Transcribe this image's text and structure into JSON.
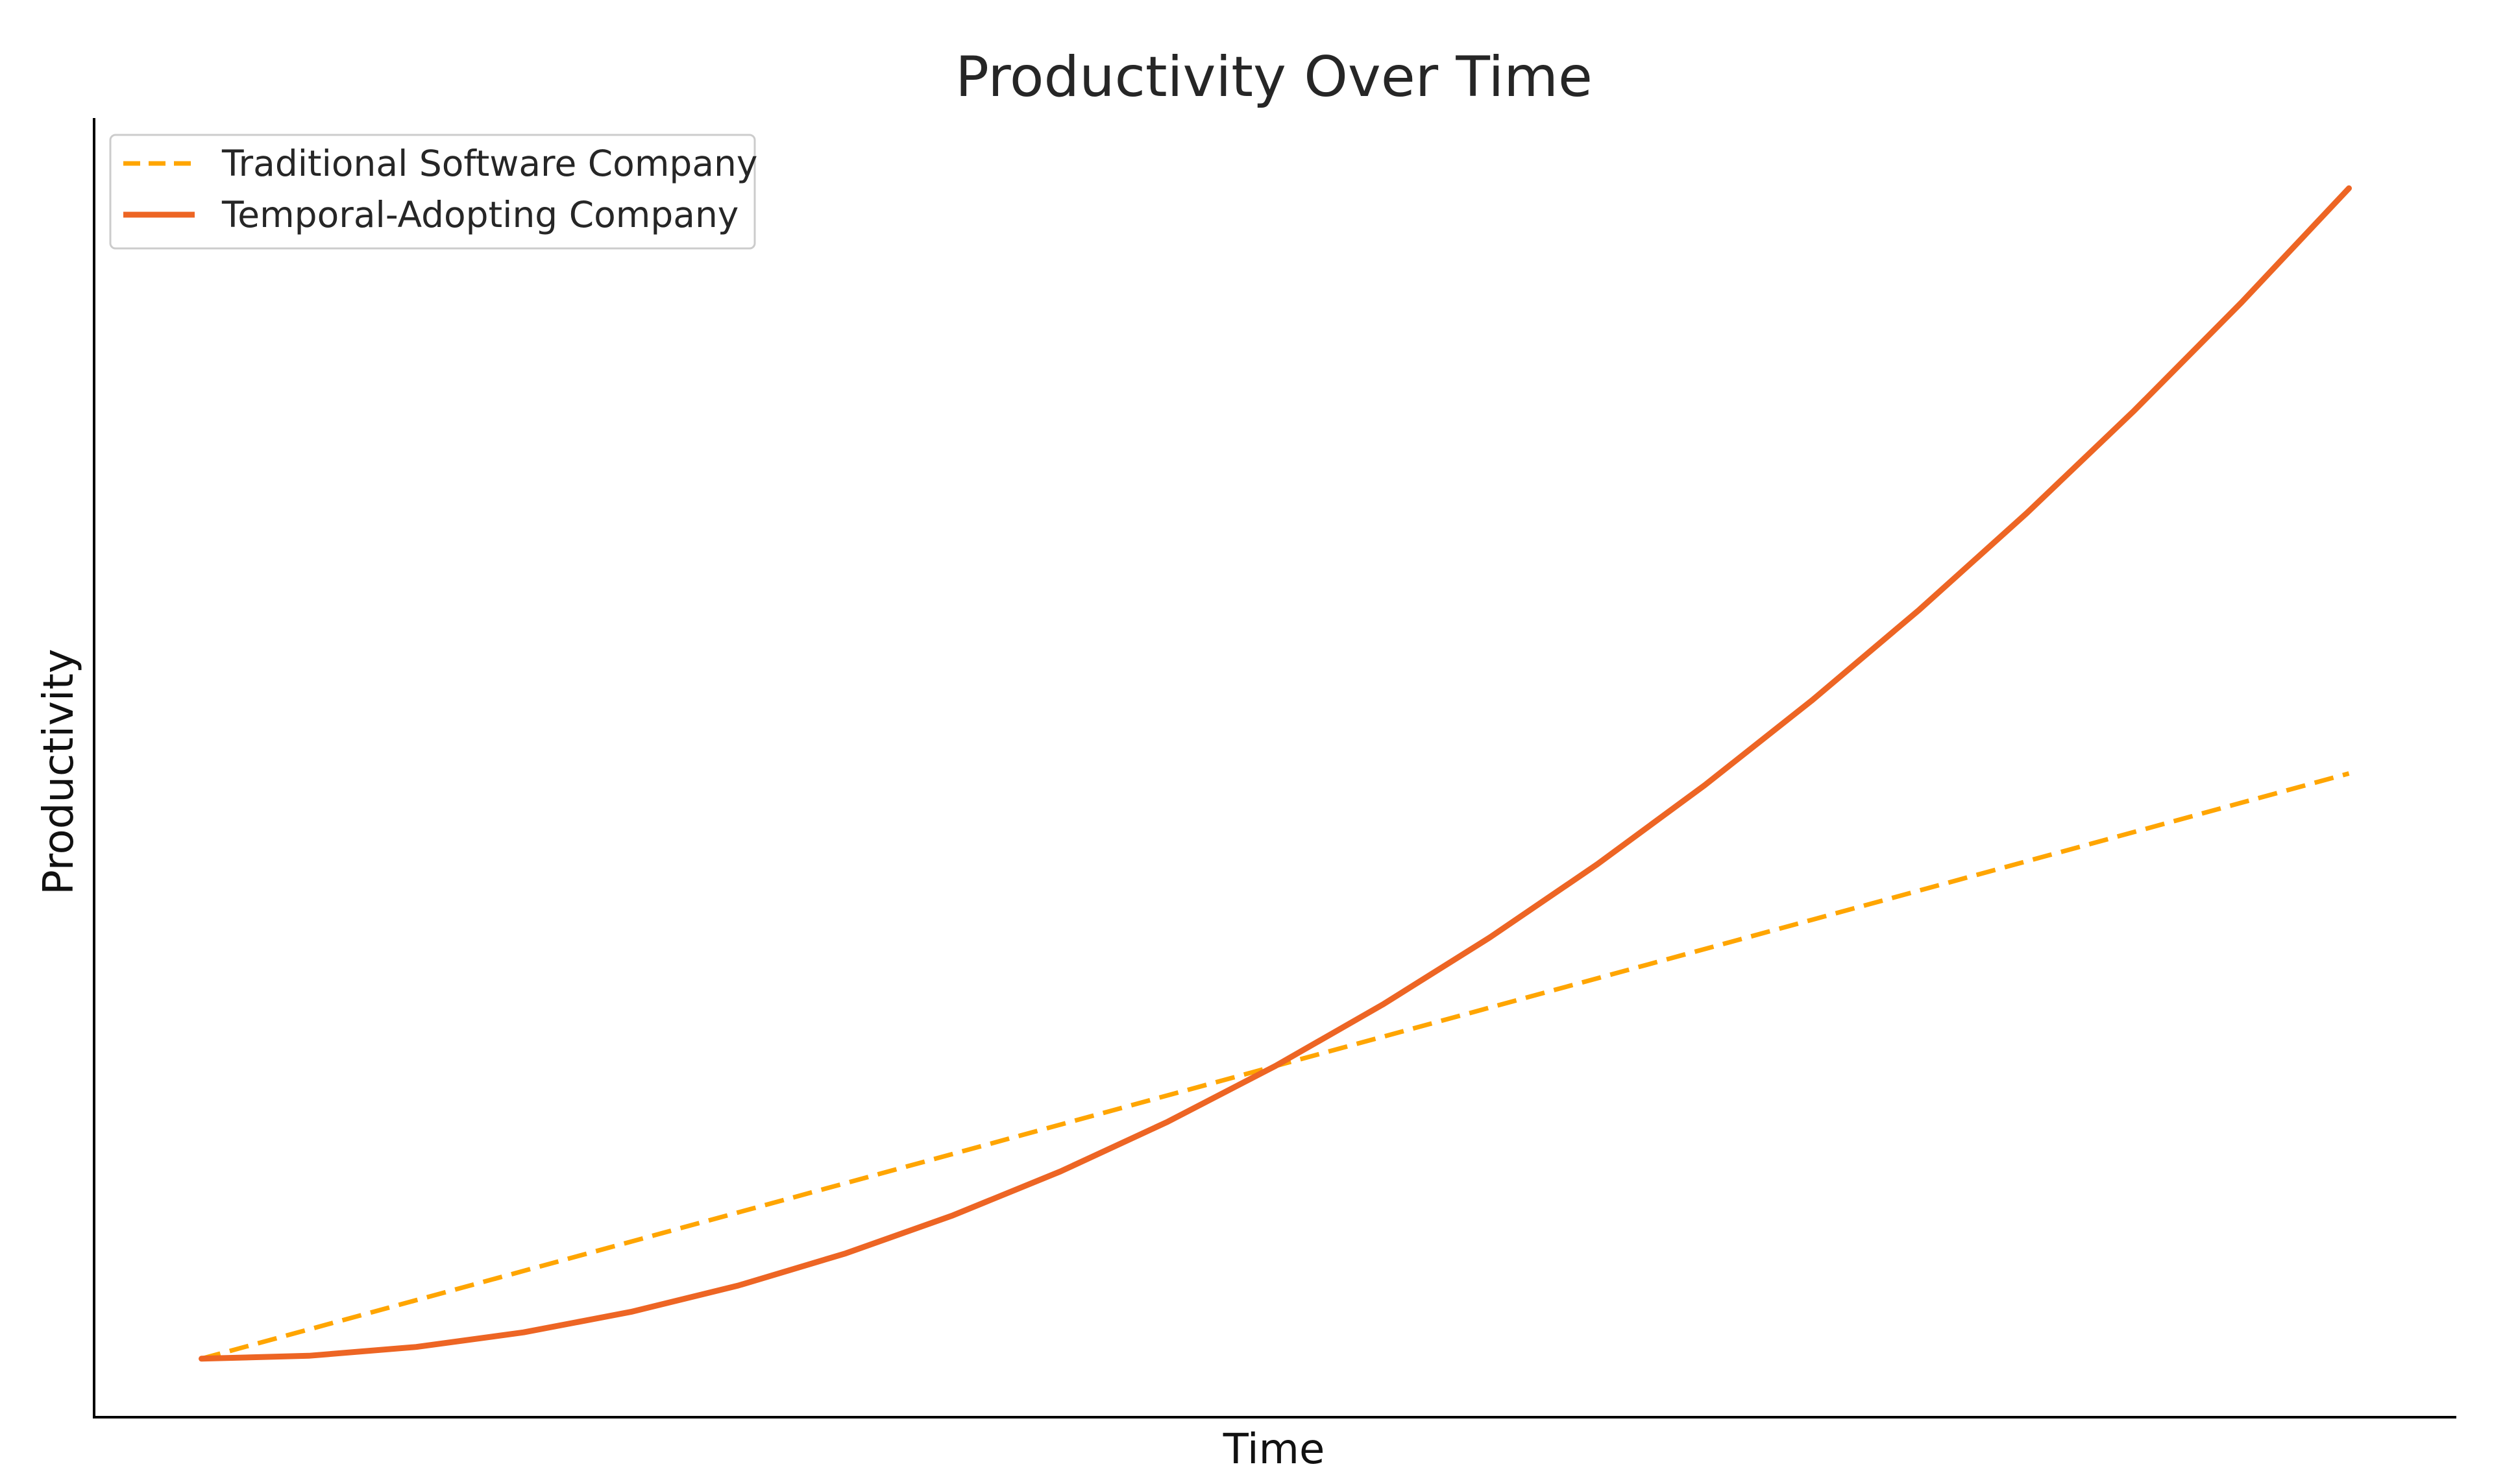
{
  "chart_data": {
    "type": "line",
    "title": "Productivity Over Time",
    "xlabel": "Time",
    "ylabel": "Productivity",
    "xlim": [
      -0.5,
      10.5
    ],
    "ylim": [
      -0.5,
      10.6
    ],
    "grid": false,
    "ticks": "none",
    "legend_position": "top-left",
    "series": [
      {
        "name": "Traditional Software Company",
        "style": "dashed",
        "color": "#FFA500",
        "x": [
          0,
          10
        ],
        "y": [
          0,
          5
        ]
      },
      {
        "name": "Temporal-Adopting Company",
        "style": "solid",
        "color": "#ED6524",
        "x": [
          0,
          0.5,
          1,
          1.5,
          2,
          2.5,
          3,
          3.5,
          4,
          4.5,
          5,
          5.5,
          6,
          6.5,
          7,
          7.5,
          8,
          8.5,
          9,
          9.5,
          10
        ],
        "y": [
          0,
          0.025,
          0.1,
          0.225,
          0.4,
          0.625,
          0.9,
          1.225,
          1.6,
          2.025,
          2.5,
          3.025,
          3.6,
          4.225,
          4.9,
          5.625,
          6.4,
          7.225,
          8.1,
          9.025,
          10
        ]
      }
    ]
  }
}
